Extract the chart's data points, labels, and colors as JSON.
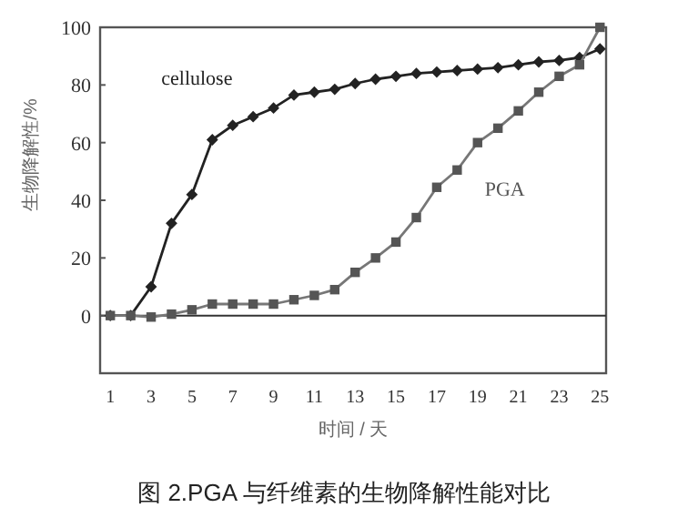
{
  "chart_data": {
    "type": "line",
    "xlabel": "时间 / 天",
    "ylabel": "生物降解性/%",
    "x": [
      1,
      2,
      3,
      4,
      5,
      6,
      7,
      8,
      9,
      10,
      11,
      12,
      13,
      14,
      15,
      16,
      17,
      18,
      19,
      20,
      21,
      22,
      23,
      24,
      25
    ],
    "series": [
      {
        "name": "cellulose",
        "color": "#222222",
        "marker": "diamond",
        "values": [
          0,
          0,
          10,
          32,
          42,
          61,
          66,
          69,
          72,
          76.5,
          77.5,
          78.5,
          80.5,
          82,
          83,
          84,
          84.5,
          85,
          85.5,
          86,
          87,
          88,
          88.5,
          89.5,
          92.5
        ]
      },
      {
        "name": "PGA",
        "color": "#555555",
        "marker": "square",
        "values": [
          0,
          0,
          -0.5,
          0.5,
          2,
          4,
          4,
          4,
          4,
          5.5,
          7,
          9,
          15,
          20,
          25.5,
          34,
          44.5,
          50.5,
          60,
          65,
          71,
          77.5,
          83,
          87,
          100
        ]
      }
    ],
    "xlim": [
      0.5,
      25.3
    ],
    "ylim": [
      -20,
      100
    ],
    "xticks": [
      1,
      3,
      5,
      7,
      9,
      11,
      13,
      15,
      17,
      19,
      21,
      23,
      25
    ],
    "yticks": [
      0,
      20,
      40,
      60,
      80,
      100
    ],
    "ref_lines": [
      {
        "axis": "y",
        "value": 0
      }
    ],
    "grid": false,
    "legend": false,
    "annotations": [
      "图 2.PGA 与纤维素的生物降解性能对比"
    ]
  }
}
